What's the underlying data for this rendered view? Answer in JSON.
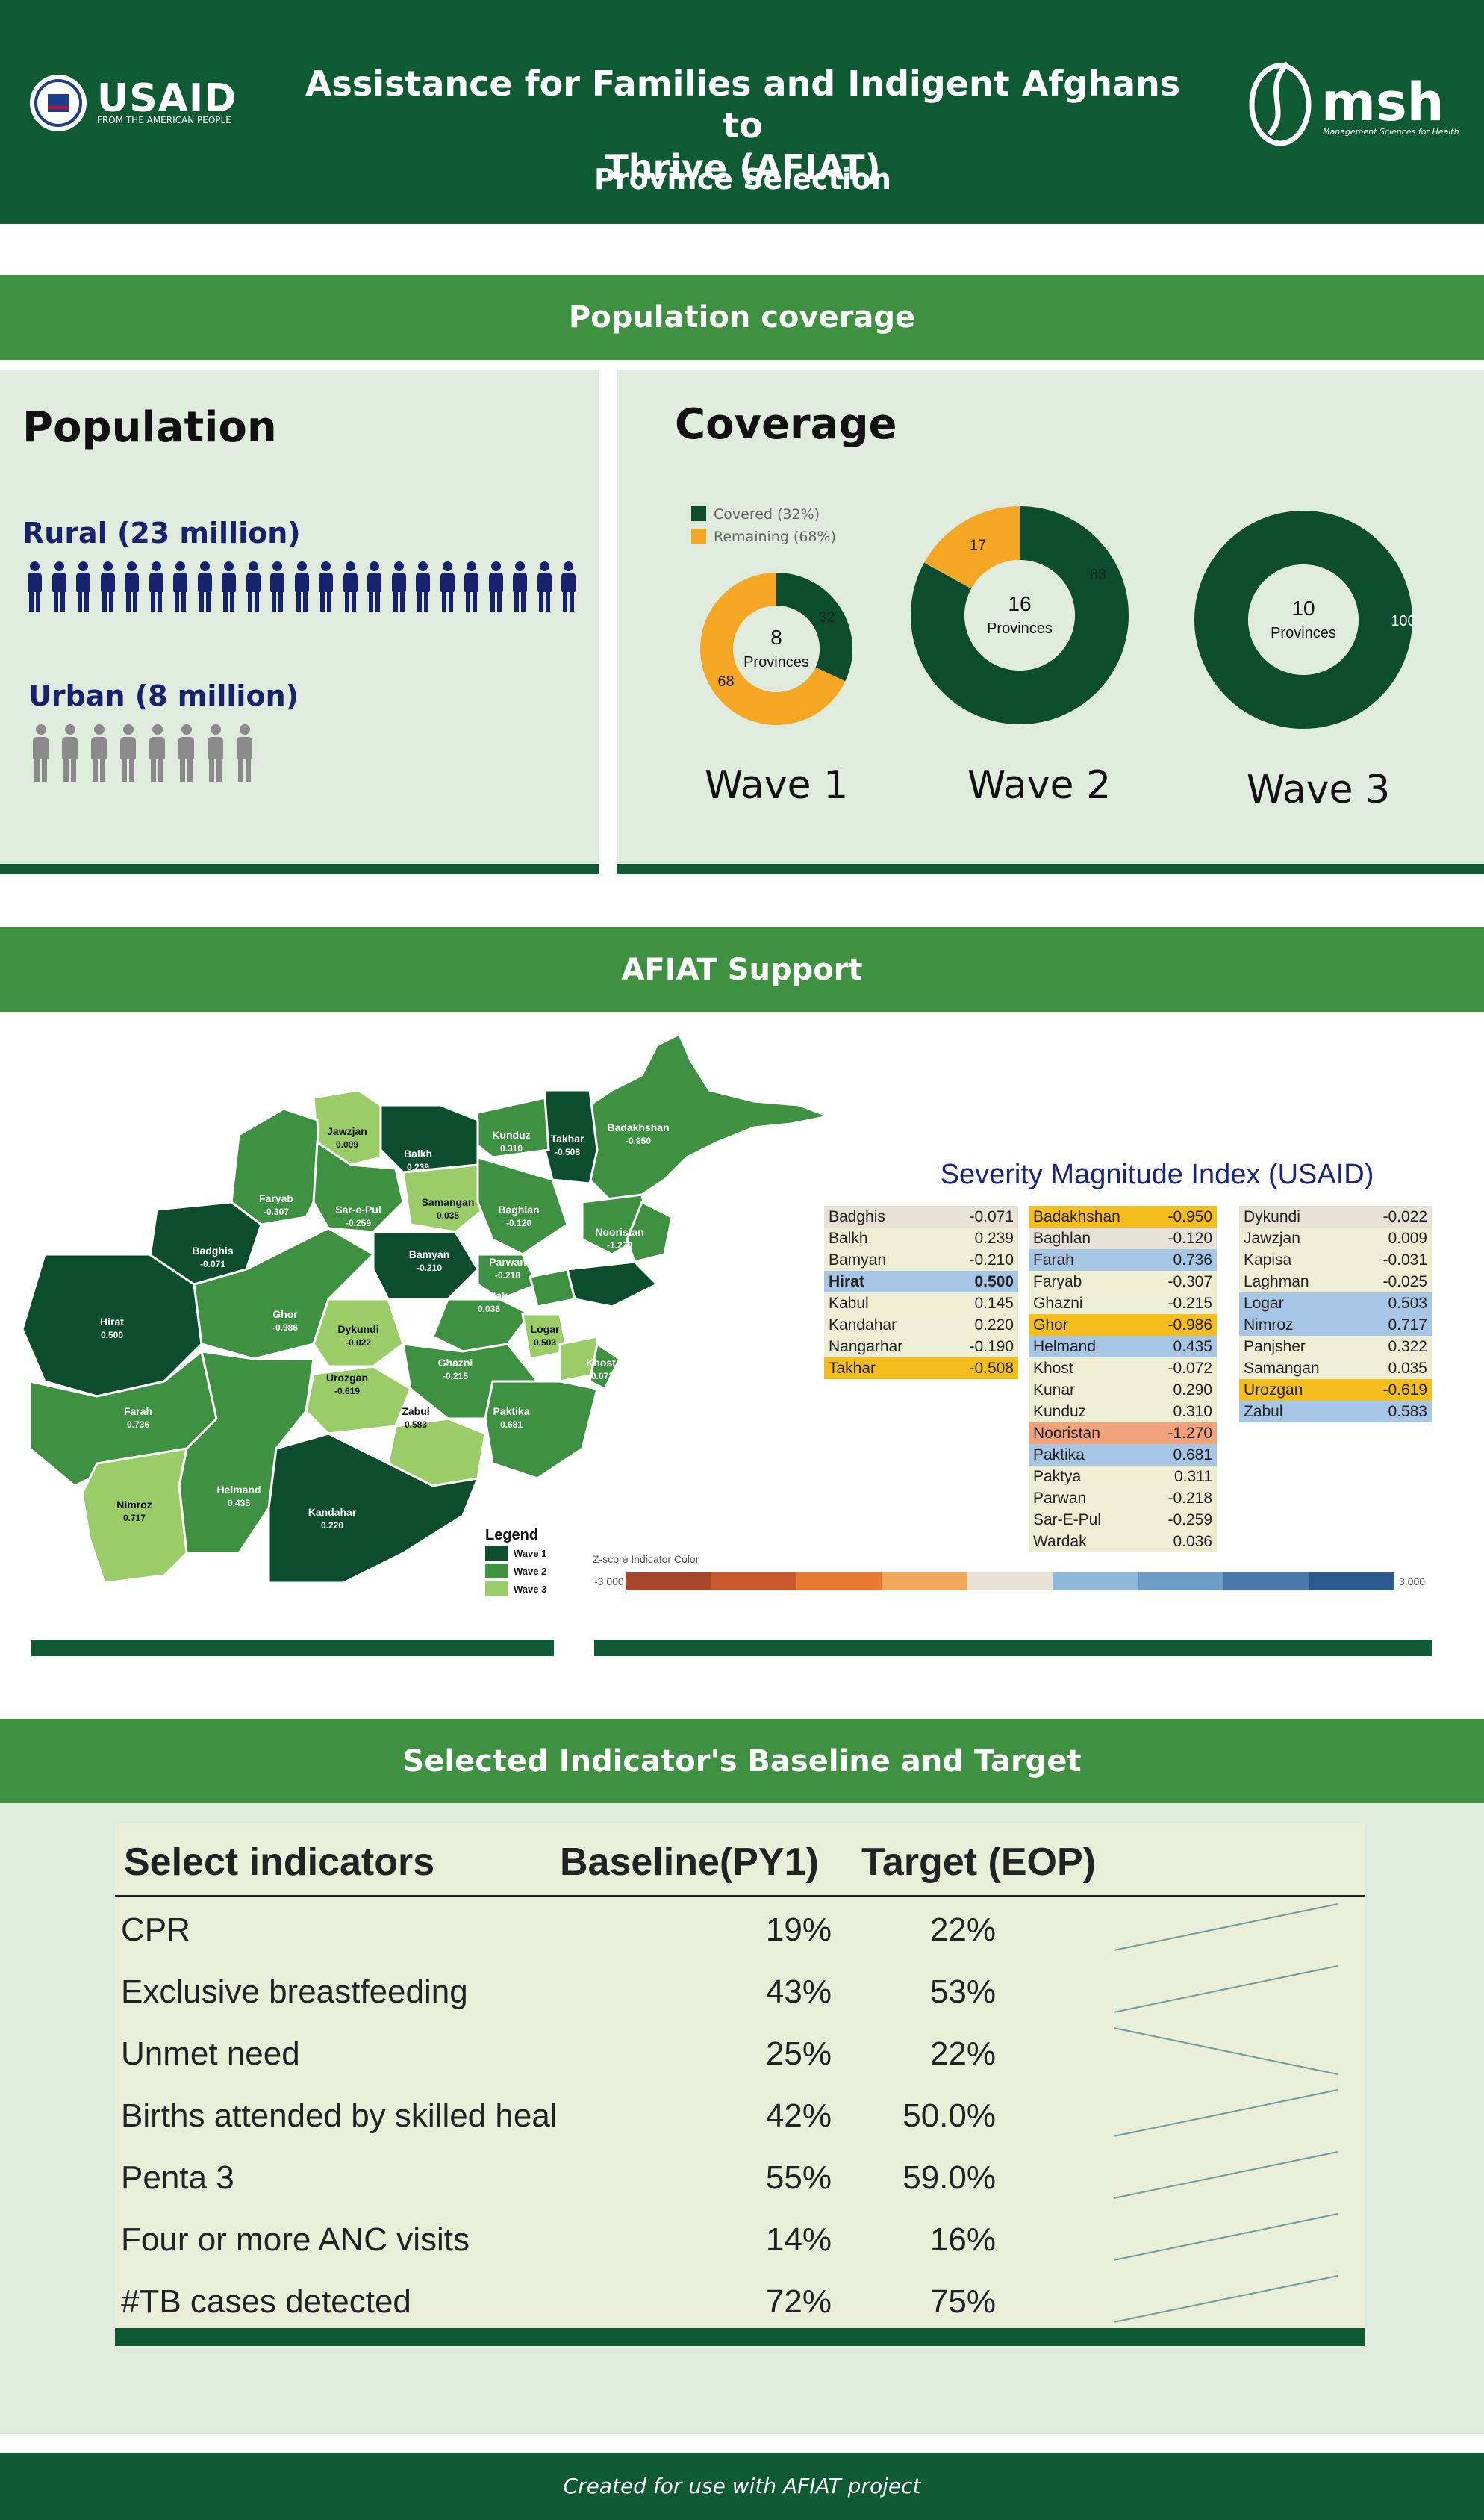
{
  "header": {
    "title_line1": "Assistance for Families and Indigent Afghans to",
    "title_line2": "Thrive (AFIAT)",
    "subtitle": "Province Selection",
    "usaid_logo_text": "USAID",
    "usaid_tagline": "FROM THE AMERICAN PEOPLE",
    "msh_logo_text": "msh",
    "msh_tagline": "Management Sciences for Health",
    "colors": {
      "header_bg": "#0e5a33",
      "section_bar": "#3e9140",
      "panel": "#deebdd"
    }
  },
  "section1": {
    "bar_title": "Population coverage",
    "population": {
      "title": "Population",
      "rural_label": "Rural (23 million)",
      "urban_label": "Urban (8 million)",
      "rural_icons": 23,
      "urban_icons": 8
    },
    "coverage": {
      "title": "Coverage",
      "legend": [
        {
          "label": "Covered (32%)",
          "color": "#0b4d2d"
        },
        {
          "label": "Remaining (68%)",
          "color": "#f5a623"
        }
      ]
    }
  },
  "section2": {
    "bar_title": "AFIAT Support",
    "severity_title": "Severity Magnitude Index (USAID)",
    "legend_title": "Legend",
    "legend_items": [
      "Wave 1",
      "Wave 2",
      "Wave 3"
    ],
    "zscore_label": "Z-score Indicator Color",
    "zscore_min": "-3.000",
    "zscore_max": "3.000",
    "map_labels": [
      {
        "name": "Jawzjan",
        "value": "0.009"
      },
      {
        "name": "Balkh",
        "value": "0.239"
      },
      {
        "name": "Kunduz",
        "value": "0.310"
      },
      {
        "name": "Takhar",
        "value": "-0.508"
      },
      {
        "name": "Badakhshan",
        "value": "-0.950"
      },
      {
        "name": "Faryab",
        "value": "-0.307"
      },
      {
        "name": "Sar-e-Pul",
        "value": "-0.259"
      },
      {
        "name": "Samangan",
        "value": "0.035"
      },
      {
        "name": "Baghlan",
        "value": "-0.120"
      },
      {
        "name": "Badghis",
        "value": "-0.071"
      },
      {
        "name": "Bamyan",
        "value": "-0.210"
      },
      {
        "name": "Parwan",
        "value": "-0.218"
      },
      {
        "name": "Nooristan",
        "value": "-1.270"
      },
      {
        "name": "Hirat",
        "value": "0.500"
      },
      {
        "name": "Ghor",
        "value": "-0.986"
      },
      {
        "name": "Dykundi",
        "value": "-0.022"
      },
      {
        "name": "Wardak",
        "value": "0.036"
      },
      {
        "name": "Logar",
        "value": "0.503"
      },
      {
        "name": "Ghazni",
        "value": "-0.215"
      },
      {
        "name": "Urozgan",
        "value": "-0.619"
      },
      {
        "name": "Khost",
        "value": "-0.072"
      },
      {
        "name": "Farah",
        "value": "0.736"
      },
      {
        "name": "Zabul",
        "value": "0.583"
      },
      {
        "name": "Paktika",
        "value": "0.681"
      },
      {
        "name": "Helmand",
        "value": "0.435"
      },
      {
        "name": "Kandahar",
        "value": "0.220"
      },
      {
        "name": "Nimroz",
        "value": "0.717"
      }
    ],
    "severity_columns": [
      [
        {
          "p": "Badghis",
          "v": "-0.071",
          "c": "#e8e2d6"
        },
        {
          "p": "Balkh",
          "v": "0.239",
          "c": "#eeeed4"
        },
        {
          "p": "Bamyan",
          "v": "-0.210",
          "c": "#eeeed4"
        },
        {
          "p": "Hirat",
          "v": "0.500",
          "c": "#a7c6e6",
          "b": true
        },
        {
          "p": "Kabul",
          "v": "0.145",
          "c": "#eeeed4"
        },
        {
          "p": "Kandahar",
          "v": "0.220",
          "c": "#eeeed4"
        },
        {
          "p": "Nangarhar",
          "v": "-0.190",
          "c": "#eeeed4"
        },
        {
          "p": "Takhar",
          "v": "-0.508",
          "c": "#f6be1c"
        }
      ],
      [
        {
          "p": "Badakhshan",
          "v": "-0.950",
          "c": "#f6be1c"
        },
        {
          "p": "Baghlan",
          "v": "-0.120",
          "c": "#e8e2d6"
        },
        {
          "p": "Farah",
          "v": "0.736",
          "c": "#a7c6e6"
        },
        {
          "p": "Faryab",
          "v": "-0.307",
          "c": "#eeeed4"
        },
        {
          "p": "Ghazni",
          "v": "-0.215",
          "c": "#eeeed4"
        },
        {
          "p": "Ghor",
          "v": "-0.986",
          "c": "#f6be1c"
        },
        {
          "p": "Helmand",
          "v": "0.435",
          "c": "#a7c6e6"
        },
        {
          "p": "Khost",
          "v": "-0.072",
          "c": "#eeeed4"
        },
        {
          "p": "Kunar",
          "v": "0.290",
          "c": "#eeeed4"
        },
        {
          "p": "Kunduz",
          "v": "0.310",
          "c": "#eeeed4"
        },
        {
          "p": "Nooristan",
          "v": "-1.270",
          "c": "#f2a37c"
        },
        {
          "p": "Paktika",
          "v": "0.681",
          "c": "#a7c6e6"
        },
        {
          "p": "Paktya",
          "v": "0.311",
          "c": "#eeeed4"
        },
        {
          "p": "Parwan",
          "v": "-0.218",
          "c": "#eeeed4"
        },
        {
          "p": "Sar-E-Pul",
          "v": "-0.259",
          "c": "#eeeed4"
        },
        {
          "p": "Wardak",
          "v": "0.036",
          "c": "#eeeed4"
        }
      ],
      [
        {
          "p": "Dykundi",
          "v": "-0.022",
          "c": "#e8e2d6"
        },
        {
          "p": "Jawzjan",
          "v": "0.009",
          "c": "#eeeed4"
        },
        {
          "p": "Kapisa",
          "v": "-0.031",
          "c": "#eeeed4"
        },
        {
          "p": "Laghman",
          "v": "-0.025",
          "c": "#eeeed4"
        },
        {
          "p": "Logar",
          "v": "0.503",
          "c": "#a7c6e6"
        },
        {
          "p": "Nimroz",
          "v": "0.717",
          "c": "#a7c6e6"
        },
        {
          "p": "Panjsher",
          "v": "0.322",
          "c": "#eeeed4"
        },
        {
          "p": "Samangan",
          "v": "0.035",
          "c": "#eeeed4"
        },
        {
          "p": "Urozgan",
          "v": "-0.619",
          "c": "#f6be1c"
        },
        {
          "p": "Zabul",
          "v": "0.583",
          "c": "#a7c6e6"
        }
      ]
    ],
    "zscore_colors": [
      "#a8462a",
      "#c9592d",
      "#e87a30",
      "#f2a85a",
      "#e8e2d6",
      "#8fb8dd",
      "#6e9cc9",
      "#4a78ad",
      "#2d5b8f"
    ]
  },
  "section3": {
    "bar_title": "Selected Indicator's Baseline and Target",
    "headers": {
      "indicator": "Select indicators",
      "baseline": "Baseline(PY1)",
      "target": "Target (EOP)"
    },
    "rows": [
      {
        "name": "CPR",
        "baseline": "19%",
        "target": "22%",
        "b": 19,
        "t": 22
      },
      {
        "name": "Exclusive breastfeeding",
        "baseline": "43%",
        "target": "53%",
        "b": 43,
        "t": 53
      },
      {
        "name": "Unmet need",
        "baseline": "25%",
        "target": "22%",
        "b": 25,
        "t": 22
      },
      {
        "name": "Births attended by skilled heal",
        "baseline": "42%",
        "target": "50.0%",
        "b": 42,
        "t": 50
      },
      {
        "name": "Penta 3",
        "baseline": "55%",
        "target": "59.0%",
        "b": 55,
        "t": 59
      },
      {
        "name": "Four or more ANC visits",
        "baseline": "14%",
        "target": "16%",
        "b": 14,
        "t": 16
      },
      {
        "name": "#TB cases detected",
        "baseline": "72%",
        "target": "75%",
        "b": 72,
        "t": 75
      }
    ]
  },
  "footer": {
    "text": "Created for use with AFIAT project"
  },
  "chart_data": [
    {
      "type": "pie",
      "title": "Wave 1",
      "center_value": "8",
      "center_label": "Provinces",
      "series": [
        {
          "name": "Covered (32%)",
          "value": 32
        },
        {
          "name": "Remaining (68%)",
          "value": 68
        }
      ],
      "colors": [
        "#0b4d2d",
        "#f5a623"
      ]
    },
    {
      "type": "pie",
      "title": "Wave 2",
      "center_value": "16",
      "center_label": "Provinces",
      "series": [
        {
          "name": "Covered (32%)",
          "value": 83
        },
        {
          "name": "Remaining (68%)",
          "value": 17
        }
      ],
      "colors": [
        "#0b4d2d",
        "#f5a623"
      ]
    },
    {
      "type": "pie",
      "title": "Wave 3",
      "center_value": "10",
      "center_label": "Provinces",
      "series": [
        {
          "name": "Covered (32%)",
          "value": 100
        }
      ],
      "colors": [
        "#0b4d2d"
      ]
    }
  ]
}
